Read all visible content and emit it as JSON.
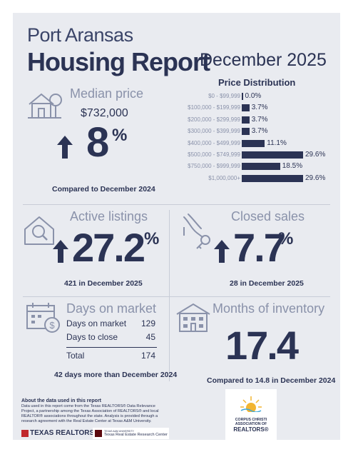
{
  "header": {
    "city": "Port Aransas",
    "title": "Housing Report",
    "month": "December 2025"
  },
  "median": {
    "label": "Median price",
    "value": "$732,000",
    "change": "8",
    "percent_sign": "%",
    "caption": "Compared to December 2024"
  },
  "price_distribution": {
    "title": "Price Distribution",
    "rows": [
      {
        "range": "$0 - $99,999",
        "pct_label": "0.0%"
      },
      {
        "range": "$100,000 - $199,999",
        "pct_label": "3.7%"
      },
      {
        "range": "$200,000 - $299,999",
        "pct_label": "3.7%"
      },
      {
        "range": "$300,000 - $399,999",
        "pct_label": "3.7%"
      },
      {
        "range": "$400,000 - $499,999",
        "pct_label": "11.1%"
      },
      {
        "range": "$500,000 - $749,999",
        "pct_label": "29.6%"
      },
      {
        "range": "$750,000 - $999,999",
        "pct_label": "18.5%"
      },
      {
        "range": "$1,000,000+",
        "pct_label": "29.6%"
      }
    ]
  },
  "chart_data": {
    "type": "bar",
    "title": "Price Distribution",
    "categories": [
      "$0 - $99,999",
      "$100,000 - $199,999",
      "$200,000 - $299,999",
      "$300,000 - $399,999",
      "$400,000 - $499,999",
      "$500,000 - $749,999",
      "$750,000 - $999,999",
      "$1,000,000+"
    ],
    "values": [
      0.0,
      3.7,
      3.7,
      3.7,
      11.1,
      29.6,
      18.5,
      29.6
    ],
    "orientation": "horizontal",
    "color": "#2b3354"
  },
  "active": {
    "label": "Active listings",
    "value": "27.2",
    "percent_sign": "%",
    "caption": "421 in December 2025"
  },
  "closed": {
    "label": "Closed sales",
    "value": "7.7",
    "percent_sign": "%",
    "caption": "28 in December 2025"
  },
  "dom": {
    "label": "Days on market",
    "rows": [
      {
        "name": "Days on market",
        "value": "129"
      },
      {
        "name": "Days to close",
        "value": "45"
      }
    ],
    "total_label": "Total",
    "total_value": "174",
    "caption": "42 days more than December 2024"
  },
  "inventory": {
    "label": "Months of inventory",
    "value": "17.4",
    "caption": "Compared to 14.8 in December 2024"
  },
  "about": {
    "heading": "About the data used in this report",
    "text": "Data used in this report come from the Texas REALTORS® Data Relevance Project, a partnership among the Texas Association of REALTORS® and local REALTOR® associations throughout the state. Analysis is provided through a research agreement with the Real Estate Center at Texas A&M University."
  },
  "logos": {
    "texas_realtors": "TEXAS REALTORS",
    "research_center_small": "TEXAS A&M UNIVERSITY",
    "research_center": "Texas Real Estate Research Center",
    "corpus_line1": "CORPUS CHRISTI",
    "corpus_line2": "ASSOCIATION OF",
    "corpus_line3": "REALTORS"
  },
  "colors": {
    "navy": "#2b3354",
    "muted": "#8a92aa",
    "panel": "#e9ebf0",
    "logo_red": "#c0282d"
  }
}
